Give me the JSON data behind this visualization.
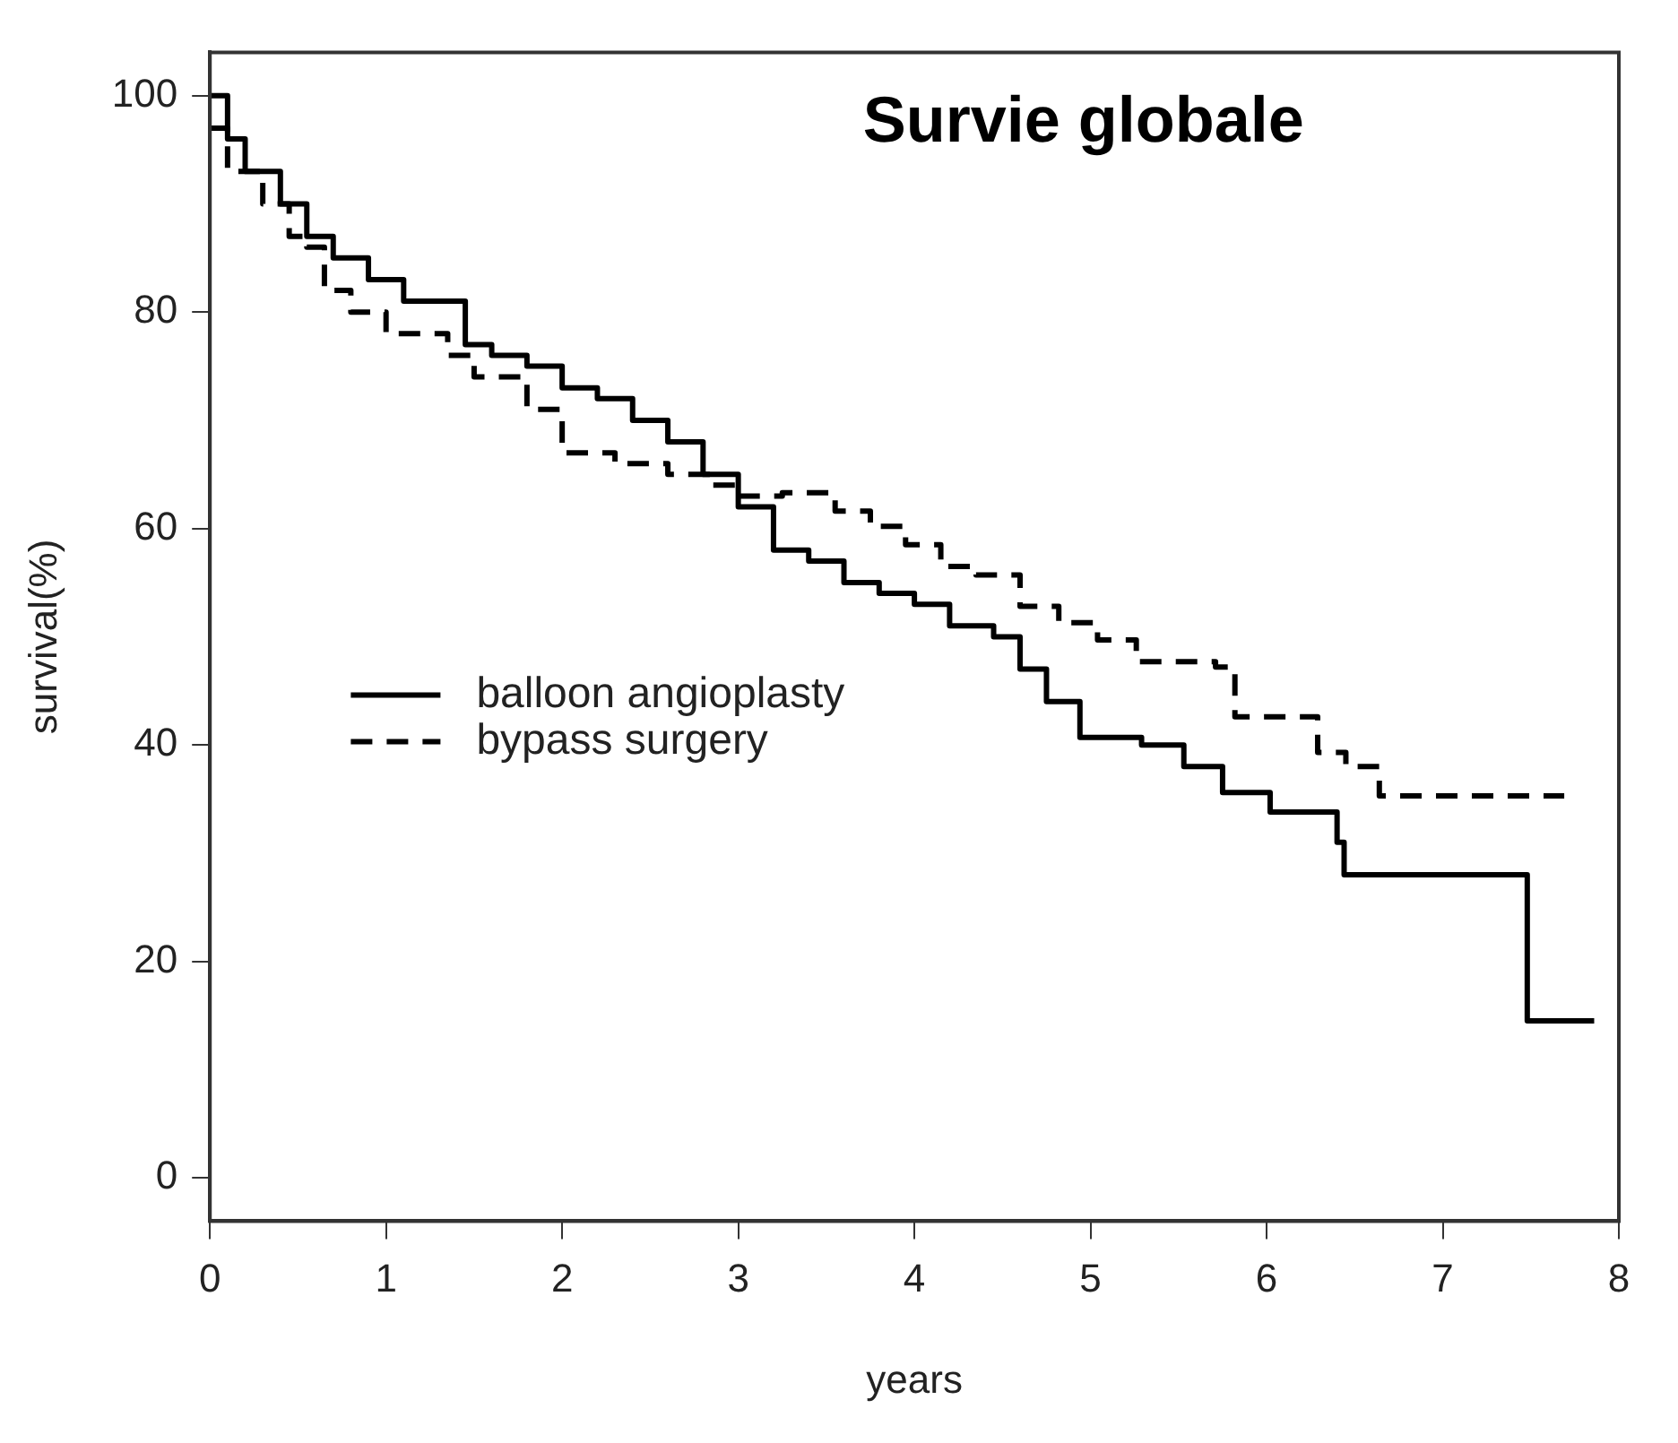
{
  "chart_data": {
    "type": "step",
    "title": "Survie globale",
    "xlabel": "years",
    "ylabel": "survival(%)",
    "xlim": [
      0,
      8
    ],
    "ylim": [
      -4,
      104
    ],
    "xticks": [
      0,
      1,
      2,
      3,
      4,
      5,
      6,
      7,
      8
    ],
    "yticks": [
      0,
      20,
      40,
      60,
      80,
      100
    ],
    "grid": false,
    "legend": "left",
    "marker": "none",
    "series": [
      {
        "name": "balloon angioplasty",
        "color": "#000000",
        "line_style": "solid",
        "x": [
          0,
          0.1,
          0.2,
          0.4,
          0.55,
          0.7,
          0.9,
          1.1,
          1.45,
          1.6,
          1.8,
          2.0,
          2.2,
          2.4,
          2.6,
          2.8,
          3.0,
          3.2,
          3.4,
          3.6,
          3.8,
          4.0,
          4.2,
          4.45,
          4.6,
          4.75,
          4.94,
          5.29,
          5.53,
          5.75,
          6.02,
          6.4,
          6.44,
          7.48,
          7.86
        ],
        "values": [
          100,
          96,
          93,
          90,
          87,
          85,
          83,
          81,
          77,
          76,
          75,
          73,
          72,
          70,
          68,
          65,
          62,
          58,
          57,
          55,
          54,
          53,
          51,
          50,
          47,
          44,
          40.7,
          40,
          38,
          35.6,
          33.8,
          31,
          28,
          14.5,
          14.5
        ]
      },
      {
        "name": "bypass surgery",
        "color": "#000000",
        "line_style": "dashed",
        "x": [
          0,
          0.1,
          0.3,
          0.45,
          0.55,
          0.65,
          0.8,
          1.0,
          1.35,
          1.5,
          1.8,
          2.0,
          2.3,
          2.6,
          2.85,
          3.0,
          3.25,
          3.55,
          3.75,
          3.95,
          4.15,
          4.35,
          4.6,
          4.82,
          5.04,
          5.26,
          5.71,
          5.82,
          6.29,
          6.45,
          6.64,
          7.69
        ],
        "values": [
          97,
          93,
          90,
          87,
          86,
          82,
          80,
          78,
          76,
          74,
          71,
          67,
          66,
          65,
          64,
          63,
          63.3,
          61.6,
          60.2,
          58.5,
          56.5,
          55.7,
          52.8,
          51.3,
          49.7,
          47.7,
          47.2,
          42.6,
          39.3,
          38,
          35.3,
          35.3
        ]
      }
    ]
  }
}
